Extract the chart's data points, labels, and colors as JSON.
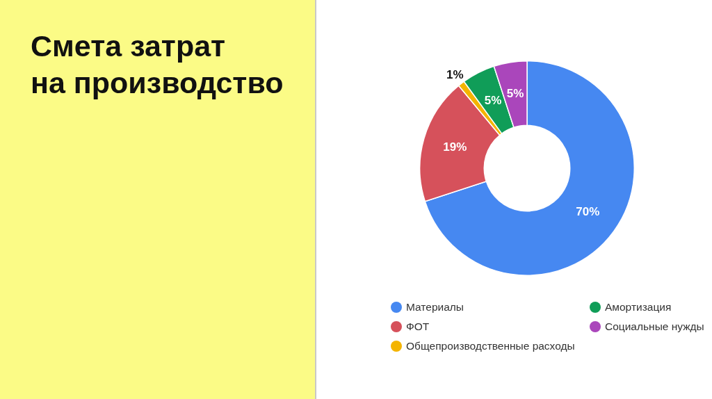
{
  "chart_data": {
    "type": "donut",
    "title": "Смета затрат\nна производство",
    "categories": [
      "Материалы",
      "ФОТ",
      "Общепроизводственные расходы",
      "Амортизация",
      "Социальные нужды"
    ],
    "values": [
      70,
      19,
      1,
      5,
      5
    ],
    "colors": [
      "#4688f1",
      "#d6515b",
      "#f4b400",
      "#109d58",
      "#aa46bb"
    ],
    "value_labels": [
      "70%",
      "19%",
      "1%",
      "5%",
      "5%"
    ],
    "legend": "bottom"
  }
}
